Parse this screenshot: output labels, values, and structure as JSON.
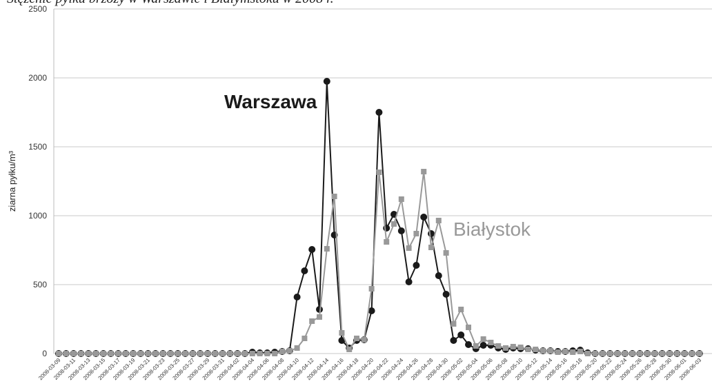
{
  "chart_data": {
    "type": "line",
    "title": "Stężenie pyłku brzozy w Warszawie i Białymstoku w 2008 r.",
    "y_label": "ziarna pyłku/m³",
    "annotations": [
      "Warszawa",
      "Białystok"
    ],
    "categories": [
      "2008-03-09",
      null,
      "2008-03-11",
      null,
      "2008-03-13",
      null,
      "2008-03-15",
      null,
      "2008-03-17",
      null,
      "2008-03-19",
      null,
      "2008-03-21",
      null,
      "2008-03-23",
      null,
      "2008-03-25",
      null,
      "2008-03-27",
      null,
      "2008-03-29",
      null,
      "2008-03-31",
      null,
      "2008-04-02",
      null,
      "2008-04-04",
      null,
      "2008-04-06",
      null,
      "2008-04-08",
      null,
      "2008-04-10",
      null,
      "2008-04-12",
      null,
      "2008-04-14",
      null,
      "2008-04-16",
      null,
      "2008-04-18",
      null,
      "2008-04-20",
      null,
      "2008-04-22",
      null,
      "2008-04-24",
      null,
      "2008-04-26",
      null,
      "2008-04-28",
      null,
      "2008-04-30",
      null,
      "2008-05-02",
      null,
      "2008-05-04",
      null,
      "2008-05-06",
      null,
      "2008-05-08",
      null,
      "2008-05-10",
      null,
      "2008-05-12",
      null,
      "2008-05-14",
      null,
      "2008-05-16",
      null,
      "2008-05-18",
      null,
      "2008-05-20",
      null,
      "2008-05-22",
      null,
      "2008-05-24",
      null,
      "2008-05-26",
      null,
      "2008-05-28",
      null,
      "2008-05-30",
      null,
      "2008-06-01",
      null,
      "2008-06-03"
    ],
    "series": [
      {
        "name": "Warszawa",
        "color": "#1a1a1a",
        "marker": "circle",
        "values": [
          0,
          0,
          0,
          0,
          0,
          0,
          0,
          0,
          0,
          0,
          0,
          0,
          0,
          0,
          0,
          0,
          0,
          0,
          0,
          0,
          0,
          0,
          0,
          0,
          0,
          0,
          10,
          5,
          5,
          10,
          15,
          20,
          410,
          600,
          755,
          320,
          1975,
          860,
          95,
          40,
          95,
          100,
          310,
          1750,
          910,
          1010,
          890,
          520,
          640,
          990,
          870,
          565,
          430,
          95,
          135,
          65,
          35,
          60,
          60,
          40,
          30,
          40,
          35,
          35,
          25,
          20,
          20,
          15,
          15,
          20,
          25,
          5,
          0,
          0,
          0,
          0,
          0,
          0,
          0,
          0,
          0,
          0,
          0,
          0,
          0,
          0,
          0
        ]
      },
      {
        "name": "Białystok",
        "color": "#999999",
        "marker": "square",
        "values": [
          0,
          0,
          0,
          0,
          0,
          0,
          0,
          0,
          0,
          0,
          0,
          0,
          0,
          0,
          0,
          0,
          0,
          0,
          0,
          0,
          0,
          0,
          0,
          0,
          0,
          0,
          0,
          0,
          0,
          0,
          15,
          20,
          40,
          110,
          235,
          265,
          760,
          1140,
          150,
          30,
          110,
          100,
          470,
          1315,
          810,
          940,
          1120,
          765,
          870,
          1320,
          770,
          965,
          730,
          215,
          320,
          190,
          55,
          105,
          80,
          55,
          40,
          50,
          45,
          30,
          30,
          20,
          20,
          10,
          15,
          10,
          15,
          0,
          0,
          0,
          0,
          0,
          0,
          0,
          0,
          0,
          0,
          0,
          0,
          0,
          0,
          0,
          0
        ]
      }
    ],
    "ylim": [
      0,
      2500
    ],
    "yticks": [
      0,
      500,
      1000,
      1500,
      2000,
      2500
    ],
    "grid": true
  }
}
